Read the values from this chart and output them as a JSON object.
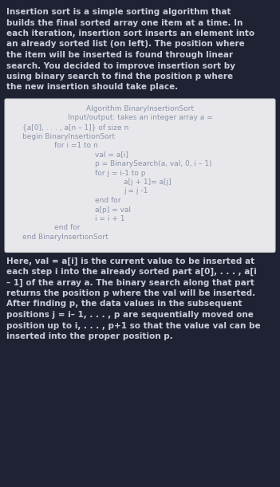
{
  "bg_color": "#1e2233",
  "top_text_color": "#c8cdd8",
  "box_bg_color": "#e8e8ec",
  "box_text_color": "#8a93a6",
  "bottom_text_color": "#c8cdd8",
  "top_lines": [
    "Insertion sort is a simple sorting algorithm that",
    "builds the final sorted array one item at a time. In",
    "each iteration, insertion sort inserts an element into",
    "an already sorted list (on left). The position where",
    "the item will be inserted is found through linear",
    "search. You decided to improve insertion sort by",
    "using binary search to find the position p where",
    "the new insertion should take place."
  ],
  "algo_lines": [
    [
      "Algorithm BinaryInsertionSort",
      0.5,
      "center"
    ],
    [
      "Input/output: takes an integer array a =",
      0.5,
      "center"
    ],
    [
      "{a[0], . . . , a[n – 1]} of size n",
      0.06,
      "left"
    ],
    [
      "begin BinaryInsertionSort",
      0.06,
      "left"
    ],
    [
      "for i =1 to n",
      0.18,
      "left"
    ],
    [
      "val = a[i]",
      0.33,
      "left"
    ],
    [
      "p = BinarySearch(a, val, 0, i – 1)",
      0.33,
      "left"
    ],
    [
      "for j = i-1 to p",
      0.33,
      "left"
    ],
    [
      "a[j + 1]= a[j]",
      0.44,
      "left"
    ],
    [
      "j = j -1",
      0.44,
      "left"
    ],
    [
      "end for",
      0.33,
      "left"
    ],
    [
      "a[p] = val",
      0.33,
      "left"
    ],
    [
      "i = i + 1",
      0.33,
      "left"
    ],
    [
      "end for",
      0.18,
      "left"
    ],
    [
      "end BinaryInsertionSort",
      0.06,
      "left"
    ]
  ],
  "bottom_lines": [
    "Here, val = a[i] is the current value to be inserted at",
    "each step i into the already sorted part a[0], . . . , a[i",
    "– 1] of the array a. The binary search along that part",
    "returns the position p where the val will be inserted.",
    "After finding p, the data values in the subsequent",
    "positions j = i– 1, . . . , p are sequentially moved one",
    "position up to i, . . . , p+1 so that the value val can be",
    "inserted into the proper position p."
  ]
}
